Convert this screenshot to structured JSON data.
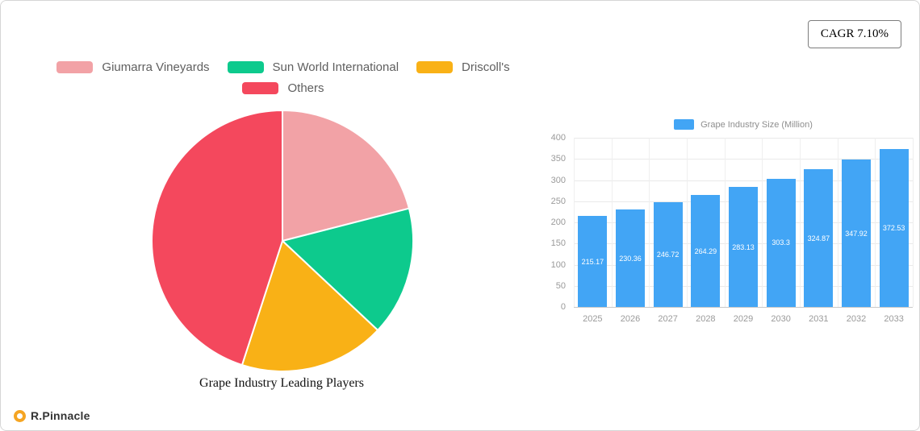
{
  "badge": {
    "cagr_label": "CAGR 7.10%"
  },
  "brand": {
    "name": "R.Pinnacle"
  },
  "chart_data": [
    {
      "type": "pie",
      "title": "Grape Industry Leading Players",
      "labels": [
        "Giumarra Vineyards",
        "Sun World International",
        "Driscoll's",
        "Others"
      ],
      "values": [
        21,
        16,
        18,
        45
      ],
      "colors": [
        "#F2A2A6",
        "#0DCA8D",
        "#F9B116",
        "#F4485D"
      ],
      "legend_position": "top"
    },
    {
      "type": "bar",
      "legend": "Grape Industry Size (Million)",
      "categories": [
        "2025",
        "2026",
        "2027",
        "2028",
        "2029",
        "2030",
        "2031",
        "2032",
        "2033"
      ],
      "values": [
        215.17,
        230.36,
        246.72,
        264.29,
        283.13,
        303.3,
        324.87,
        347.92,
        372.53
      ],
      "ylim": [
        0,
        400
      ],
      "yticks": [
        0,
        50,
        100,
        150,
        200,
        250,
        300,
        350,
        400
      ],
      "color": "#42A5F5",
      "grid": true,
      "legend_position": "top"
    }
  ]
}
